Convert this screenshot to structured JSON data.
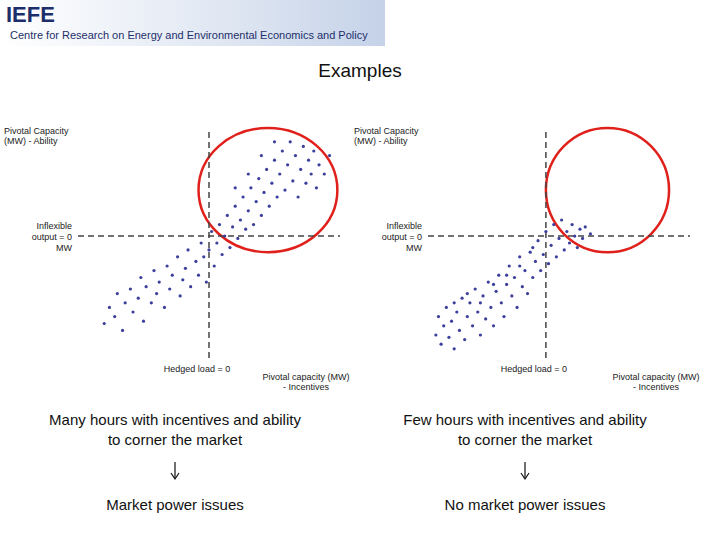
{
  "header": {
    "logo": "IEFE",
    "subtitle": "Centre for Research on Energy and Environmental Economics and Policy"
  },
  "title": "Examples",
  "chart_data": [
    {
      "type": "scatter",
      "y_label": "Pivotal Capacity (MW) - Ability",
      "x_label": "Pivotal capacity (MW) - Incentives",
      "xlim": [
        0,
        100
      ],
      "ylim": [
        0,
        100
      ],
      "tick_labels": false,
      "color": "#3b3f9c",
      "marker": "circle",
      "hline": {
        "value": 53,
        "label": "Inflexible output = 0 MW"
      },
      "vline": {
        "value": 50,
        "label": "Hedged load = 0"
      },
      "highlight": {
        "x": [
          46,
          99
        ],
        "y": [
          46,
          100
        ],
        "color": "#e0201b"
      },
      "caption": "Many hours with incentives and ability to corner the market",
      "conclusion": "Market power issues",
      "x": [
        10,
        12,
        14,
        15,
        17,
        18,
        20,
        21,
        23,
        24,
        25,
        26,
        28,
        29,
        30,
        31,
        33,
        34,
        35,
        36,
        38,
        39,
        40,
        41,
        42,
        43,
        45,
        46,
        47,
        48,
        49,
        50,
        51,
        52,
        53,
        54,
        55,
        56,
        57,
        58,
        59,
        60,
        61,
        62,
        63,
        64,
        65,
        66,
        67,
        68,
        69,
        70,
        71,
        72,
        73,
        74,
        75,
        76,
        77,
        78,
        79,
        80,
        81,
        82,
        83,
        84,
        85,
        86,
        87,
        88,
        89,
        90,
        91,
        92,
        94,
        96,
        70,
        65,
        60,
        75
      ],
      "values": [
        15,
        22,
        18,
        28,
        12,
        24,
        30,
        20,
        26,
        35,
        16,
        31,
        24,
        38,
        28,
        33,
        22,
        40,
        30,
        36,
        44,
        27,
        34,
        39,
        47,
        31,
        42,
        36,
        50,
        44,
        33,
        47,
        55,
        40,
        50,
        58,
        45,
        53,
        62,
        48,
        57,
        66,
        52,
        60,
        70,
        56,
        64,
        74,
        58,
        68,
        78,
        62,
        72,
        82,
        66,
        76,
        86,
        70,
        80,
        90,
        73,
        84,
        94,
        77,
        88,
        70,
        82,
        92,
        76,
        86,
        80,
        90,
        74,
        84,
        80,
        88,
        88,
        80,
        74,
        94
      ]
    },
    {
      "type": "scatter",
      "y_label": "Pivotal Capacity (MW) - Ability",
      "x_label": "Pivotal capacity (MW) - Incentives",
      "xlim": [
        0,
        100
      ],
      "ylim": [
        0,
        100
      ],
      "tick_labels": false,
      "color": "#3b3f9c",
      "marker": "circle",
      "hline": {
        "value": 53,
        "label": "Inflexible output = 0 MW"
      },
      "vline": {
        "value": 45,
        "label": "Hedged load = 0"
      },
      "highlight": {
        "x": [
          45,
          92
        ],
        "y": [
          46,
          100
        ],
        "color": "#e0201b"
      },
      "caption": "Few hours with incentives and ability to corner the market",
      "conclusion": "No market power issues",
      "x": [
        3,
        4,
        5,
        6,
        7,
        8,
        9,
        10,
        11,
        12,
        13,
        14,
        15,
        16,
        17,
        18,
        19,
        20,
        21,
        22,
        23,
        24,
        25,
        26,
        27,
        28,
        29,
        30,
        31,
        32,
        33,
        34,
        35,
        36,
        37,
        38,
        39,
        40,
        41,
        42,
        43,
        44,
        45,
        46,
        47,
        48,
        49,
        50,
        51,
        52,
        53,
        54,
        55,
        56,
        57,
        58,
        59,
        60,
        62,
        40,
        35,
        30,
        25,
        20,
        15,
        10
      ],
      "values": [
        10,
        18,
        6,
        14,
        22,
        9,
        16,
        4,
        20,
        12,
        26,
        8,
        18,
        24,
        14,
        30,
        20,
        10,
        27,
        17,
        33,
        22,
        14,
        29,
        36,
        24,
        18,
        32,
        40,
        27,
        35,
        22,
        44,
        31,
        38,
        28,
        46,
        35,
        42,
        51,
        38,
        45,
        55,
        41,
        49,
        58,
        44,
        52,
        60,
        47,
        55,
        50,
        58,
        53,
        48,
        56,
        52,
        57,
        54,
        48,
        40,
        36,
        32,
        24,
        28,
        24
      ]
    }
  ]
}
